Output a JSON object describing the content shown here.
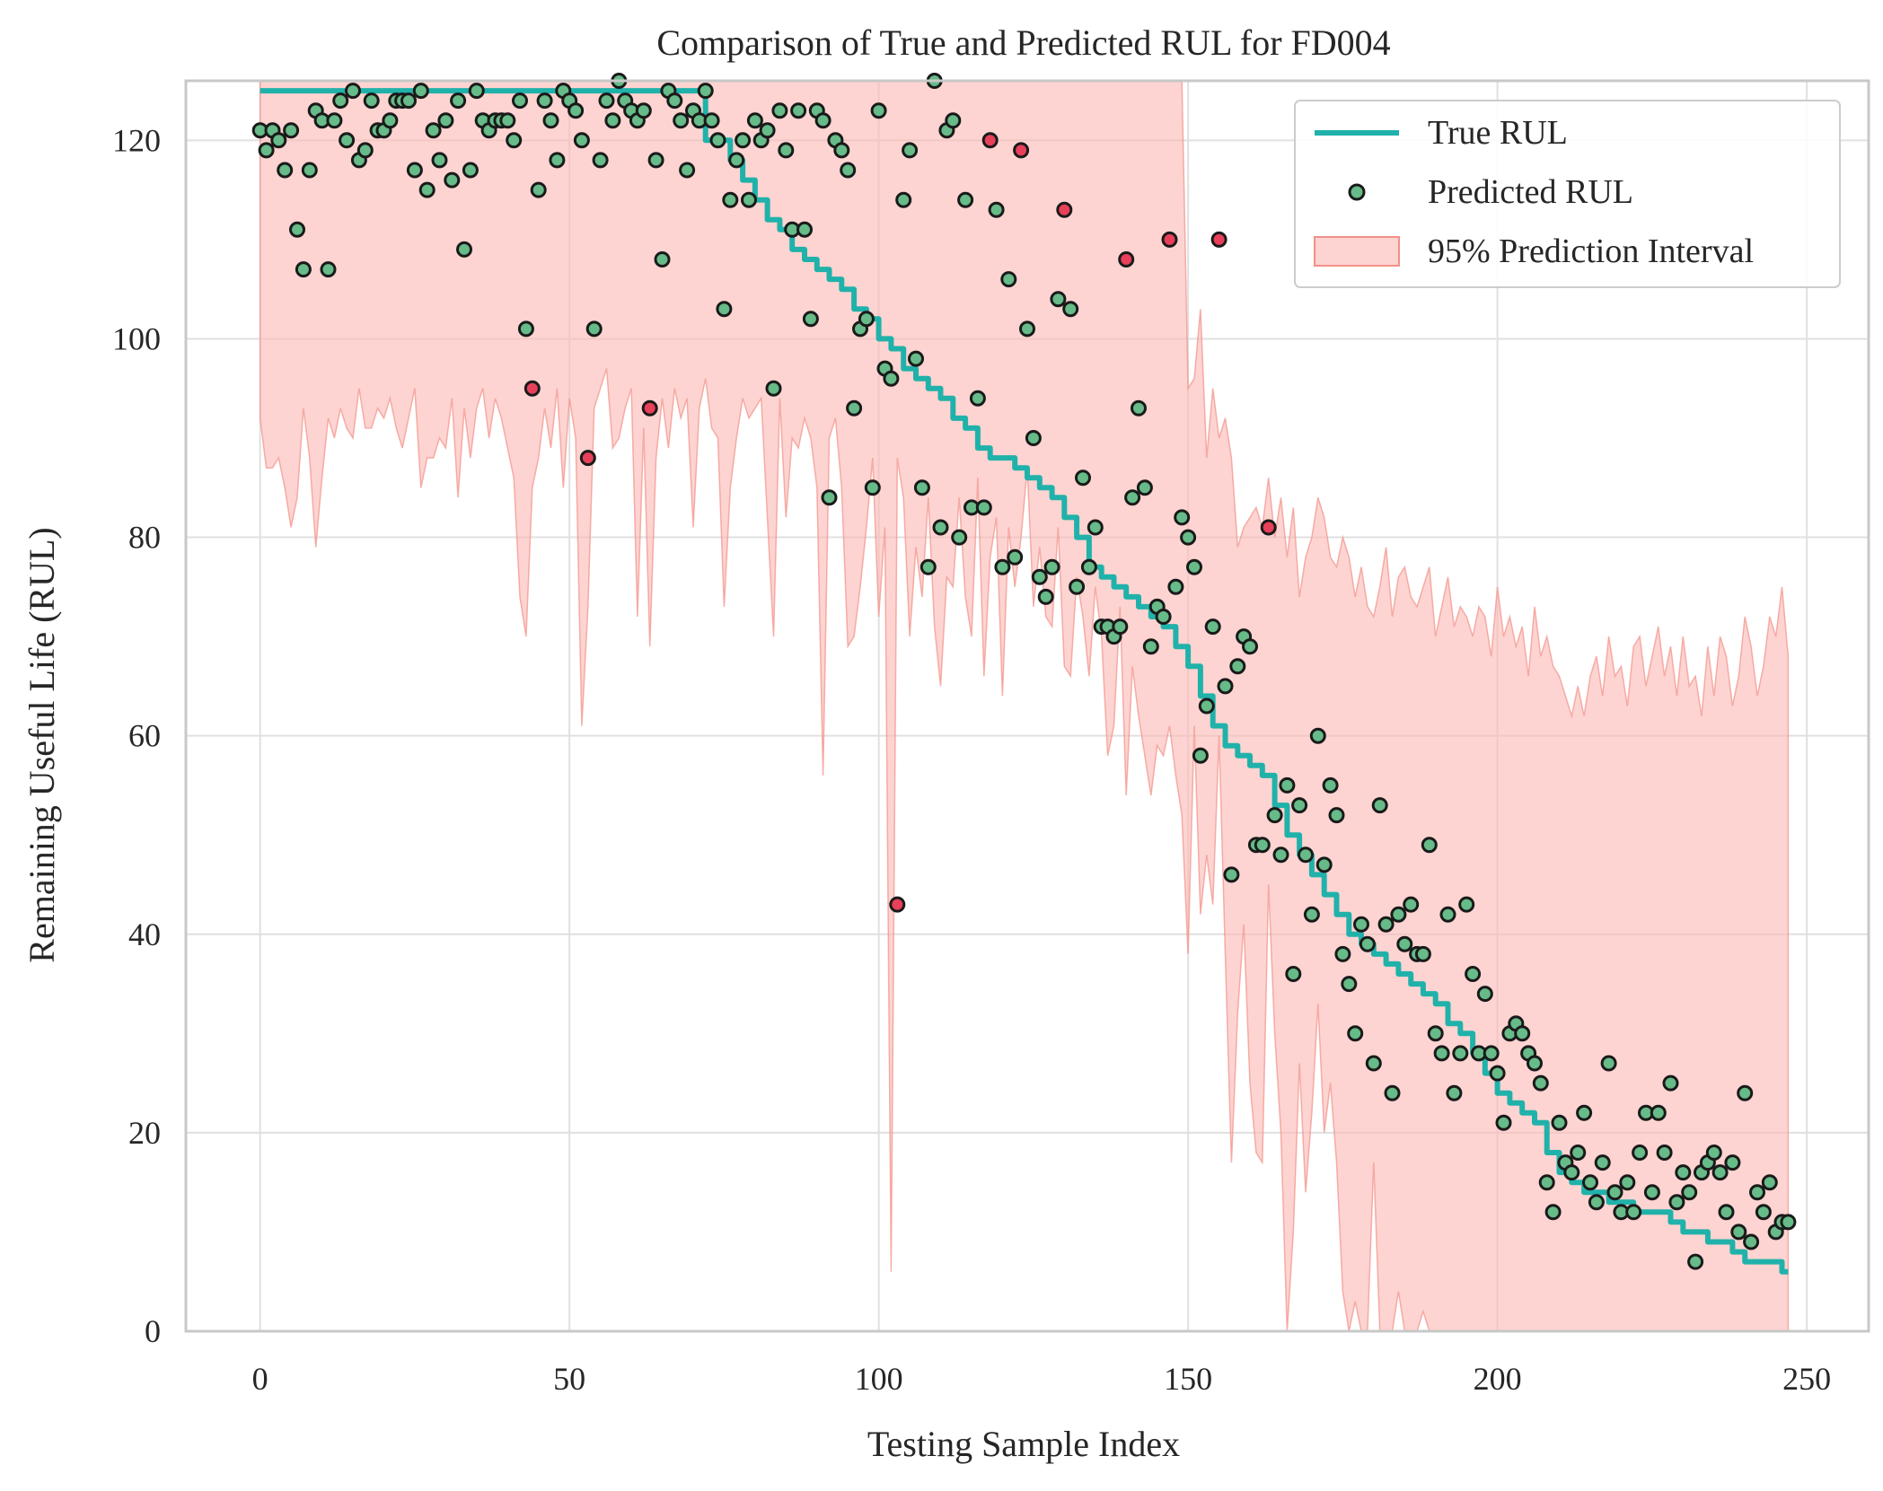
{
  "chart_data": {
    "type": "line",
    "title": "Comparison of True and Predicted RUL for FD004",
    "xlabel": "Testing Sample Index",
    "ylabel": "Remaining Useful Life (RUL)",
    "xlim": [
      -12,
      260
    ],
    "ylim": [
      0,
      126
    ],
    "x_ticks": [
      0,
      50,
      100,
      150,
      200,
      250
    ],
    "y_ticks": [
      0,
      20,
      40,
      60,
      80,
      100,
      120
    ],
    "grid": true,
    "legend_position": "top-right",
    "colors": {
      "true_line": "#20b2aa",
      "predicted_in": "#66bb88",
      "predicted_out": "#e8405a",
      "interval_fill": "#fcb8b2",
      "interval_edge": "#f29088",
      "marker_edge": "#1a1a1a",
      "grid": "#e0e0e0",
      "spine": "#c8c8c8"
    },
    "legend": [
      {
        "label": "True RUL",
        "kind": "line"
      },
      {
        "label": "Predicted RUL",
        "kind": "marker"
      },
      {
        "label": "95% Prediction Interval",
        "kind": "patch"
      }
    ],
    "true_rul": {
      "name": "True RUL",
      "x": [
        0,
        70,
        72,
        74,
        76,
        78,
        80,
        82,
        84,
        86,
        88,
        90,
        92,
        94,
        96,
        98,
        100,
        102,
        104,
        106,
        108,
        110,
        112,
        114,
        116,
        118,
        120,
        122,
        124,
        126,
        128,
        130,
        132,
        134,
        136,
        138,
        140,
        142,
        144,
        146,
        148,
        150,
        152,
        154,
        156,
        158,
        160,
        162,
        164,
        166,
        168,
        170,
        172,
        174,
        176,
        178,
        180,
        182,
        184,
        186,
        188,
        190,
        192,
        194,
        196,
        198,
        200,
        202,
        204,
        206,
        208,
        210,
        212,
        214,
        216,
        218,
        220,
        222,
        224,
        226,
        228,
        230,
        232,
        234,
        236,
        238,
        240,
        242,
        244,
        246,
        247
      ],
      "y": [
        125,
        125,
        120,
        120,
        118,
        116,
        114,
        112,
        111,
        109,
        108,
        107,
        106,
        105,
        103,
        102,
        100,
        99,
        97,
        96,
        95,
        94,
        92,
        91,
        89,
        88,
        88,
        87,
        86,
        85,
        84,
        82,
        80,
        77,
        76,
        75,
        74,
        73,
        72,
        71,
        69,
        67,
        64,
        61,
        59,
        58,
        57,
        56,
        53,
        50,
        48,
        46,
        44,
        42,
        40,
        39,
        38,
        37,
        36,
        35,
        34,
        33,
        31,
        30,
        28,
        26,
        24,
        23,
        22,
        21,
        18,
        16,
        15,
        14,
        14,
        13,
        13,
        12,
        12,
        12,
        11,
        10,
        10,
        9,
        9,
        8,
        7,
        7,
        7,
        6,
        6
      ]
    },
    "predicted_rul": {
      "name": "Predicted RUL",
      "x": [
        0,
        1,
        2,
        3,
        4,
        5,
        6,
        7,
        8,
        9,
        10,
        11,
        12,
        13,
        14,
        15,
        16,
        17,
        18,
        19,
        20,
        21,
        22,
        23,
        24,
        25,
        26,
        27,
        28,
        29,
        30,
        31,
        32,
        33,
        34,
        35,
        36,
        37,
        38,
        39,
        40,
        41,
        42,
        43,
        44,
        45,
        46,
        47,
        48,
        49,
        50,
        51,
        52,
        53,
        54,
        55,
        56,
        57,
        58,
        59,
        60,
        61,
        62,
        63,
        64,
        65,
        66,
        67,
        68,
        69,
        70,
        71,
        72,
        73,
        74,
        75,
        76,
        77,
        78,
        79,
        80,
        81,
        82,
        83,
        84,
        85,
        86,
        87,
        88,
        89,
        90,
        91,
        92,
        93,
        94,
        95,
        96,
        97,
        98,
        99,
        100,
        101,
        102,
        103,
        104,
        105,
        106,
        107,
        108,
        109,
        110,
        111,
        112,
        113,
        114,
        115,
        116,
        117,
        118,
        119,
        120,
        121,
        122,
        123,
        124,
        125,
        126,
        127,
        128,
        129,
        130,
        131,
        132,
        133,
        134,
        135,
        136,
        137,
        138,
        139,
        140,
        141,
        142,
        143,
        144,
        145,
        146,
        147,
        148,
        149,
        150,
        151,
        152,
        153,
        154,
        155,
        156,
        157,
        158,
        159,
        160,
        161,
        162,
        163,
        164,
        165,
        166,
        167,
        168,
        169,
        170,
        171,
        172,
        173,
        174,
        175,
        176,
        177,
        178,
        179,
        180,
        181,
        182,
        183,
        184,
        185,
        186,
        187,
        188,
        189,
        190,
        191,
        192,
        193,
        194,
        195,
        196,
        197,
        198,
        199,
        200,
        201,
        202,
        203,
        204,
        205,
        206,
        207,
        208,
        209,
        210,
        211,
        212,
        213,
        214,
        215,
        216,
        217,
        218,
        219,
        220,
        221,
        222,
        223,
        224,
        225,
        226,
        227,
        228,
        229,
        230,
        231,
        232,
        233,
        234,
        235,
        236,
        237,
        238,
        239,
        240,
        241,
        242,
        243,
        244,
        245,
        246,
        247
      ],
      "y": [
        121,
        119,
        121,
        120,
        117,
        121,
        111,
        107,
        117,
        123,
        122,
        107,
        122,
        124,
        120,
        125,
        118,
        119,
        124,
        121,
        121,
        122,
        124,
        124,
        124,
        117,
        125,
        115,
        121,
        118,
        122,
        116,
        124,
        109,
        117,
        125,
        122,
        121,
        122,
        122,
        122,
        120,
        124,
        101,
        95,
        115,
        124,
        122,
        118,
        125,
        124,
        123,
        120,
        88,
        101,
        118,
        124,
        122,
        126,
        124,
        123,
        122,
        123,
        93,
        118,
        108,
        125,
        124,
        122,
        117,
        123,
        122,
        125,
        122,
        120,
        103,
        114,
        118,
        120,
        114,
        122,
        120,
        121,
        95,
        123,
        119,
        111,
        123,
        111,
        102,
        123,
        122,
        84,
        120,
        119,
        117,
        93,
        101,
        102,
        85,
        123,
        97,
        96,
        43,
        114,
        119,
        98,
        85,
        77,
        126,
        81,
        121,
        122,
        80,
        114,
        83,
        94,
        83,
        120,
        113,
        77,
        106,
        78,
        119,
        101,
        90,
        76,
        74,
        77,
        104,
        113,
        103,
        75,
        86,
        77,
        81,
        71,
        71,
        70,
        71,
        108,
        84,
        93,
        85,
        69,
        73,
        72,
        110,
        75,
        82,
        80,
        77,
        58,
        63,
        71,
        110,
        65,
        46,
        67,
        70,
        69,
        49,
        49,
        81,
        52,
        48,
        55,
        36,
        53,
        48,
        42,
        60,
        47,
        55,
        52,
        38,
        35,
        30,
        41,
        39,
        27,
        53,
        41,
        24,
        42,
        39,
        43,
        38,
        38,
        49,
        30,
        28,
        42,
        24,
        28,
        43,
        36,
        28,
        34,
        28,
        26,
        21,
        30,
        31,
        30,
        28,
        27,
        25,
        15,
        12,
        21,
        17,
        16,
        18,
        22,
        15,
        13,
        17,
        27,
        14,
        12,
        15,
        12,
        18,
        22,
        14,
        22,
        18,
        25,
        13,
        16,
        14,
        7,
        16,
        17,
        18,
        16,
        12,
        17,
        10,
        24,
        9,
        14,
        12,
        15,
        10,
        11,
        11
      ]
    },
    "outside_interval_indices": [
      44,
      53,
      63,
      103,
      118,
      123,
      130,
      140,
      147,
      155,
      163
    ],
    "prediction_interval": {
      "name": "95% Prediction Interval",
      "x": [
        0,
        1,
        2,
        3,
        4,
        5,
        6,
        7,
        8,
        9,
        10,
        11,
        12,
        13,
        14,
        15,
        16,
        17,
        18,
        19,
        20,
        21,
        22,
        23,
        24,
        25,
        26,
        27,
        28,
        29,
        30,
        31,
        32,
        33,
        34,
        35,
        36,
        37,
        38,
        39,
        40,
        41,
        42,
        43,
        44,
        45,
        46,
        47,
        48,
        49,
        50,
        51,
        52,
        53,
        54,
        55,
        56,
        57,
        58,
        59,
        60,
        61,
        62,
        63,
        64,
        65,
        66,
        67,
        68,
        69,
        70,
        71,
        72,
        73,
        74,
        75,
        76,
        77,
        78,
        79,
        80,
        81,
        82,
        83,
        84,
        85,
        86,
        87,
        88,
        89,
        90,
        91,
        92,
        93,
        94,
        95,
        96,
        97,
        98,
        99,
        100,
        101,
        102,
        103,
        104,
        105,
        106,
        107,
        108,
        109,
        110,
        111,
        112,
        113,
        114,
        115,
        116,
        117,
        118,
        119,
        120,
        121,
        122,
        123,
        124,
        125,
        126,
        127,
        128,
        129,
        130,
        131,
        132,
        133,
        134,
        135,
        136,
        137,
        138,
        139,
        140,
        141,
        142,
        143,
        144,
        145,
        146,
        147,
        148,
        149,
        150,
        151,
        152,
        153,
        154,
        155,
        156,
        157,
        158,
        159,
        160,
        161,
        162,
        163,
        164,
        165,
        166,
        167,
        168,
        169,
        170,
        171,
        172,
        173,
        174,
        175,
        176,
        177,
        178,
        179,
        180,
        181,
        182,
        183,
        184,
        185,
        186,
        187,
        188,
        189,
        190,
        191,
        192,
        193,
        194,
        195,
        196,
        197,
        198,
        199,
        200,
        201,
        202,
        203,
        204,
        205,
        206,
        207,
        208,
        209,
        210,
        211,
        212,
        213,
        214,
        215,
        216,
        217,
        218,
        219,
        220,
        221,
        222,
        223,
        224,
        225,
        226,
        227,
        228,
        229,
        230,
        231,
        232,
        233,
        234,
        235,
        236,
        237,
        238,
        239,
        240,
        241,
        242,
        243,
        244,
        245,
        246,
        247
      ],
      "lower": [
        92,
        87,
        87,
        88,
        85,
        81,
        84,
        93,
        88,
        79,
        86,
        92,
        90,
        93,
        91,
        90,
        95,
        91,
        91,
        93,
        92,
        94,
        91,
        89,
        92,
        95,
        85,
        88,
        88,
        90,
        89,
        94,
        84,
        93,
        88,
        93,
        95,
        90,
        94,
        92,
        89,
        86,
        74,
        70,
        85,
        88,
        93,
        89,
        95,
        85,
        94,
        90,
        61,
        73,
        93,
        95,
        97,
        89,
        90,
        93,
        95,
        72,
        91,
        69,
        88,
        94,
        89,
        95,
        92,
        94,
        81,
        93,
        96,
        91,
        90,
        73,
        85,
        90,
        94,
        92,
        93,
        94,
        82,
        70,
        94,
        82,
        90,
        89,
        92,
        90,
        85,
        56,
        90,
        92,
        85,
        69,
        70,
        75,
        81,
        88,
        72,
        81,
        6,
        88,
        84,
        70,
        79,
        74,
        84,
        71,
        65,
        76,
        75,
        84,
        74,
        70,
        86,
        66,
        78,
        82,
        64,
        81,
        75,
        80,
        87,
        73,
        79,
        72,
        71,
        81,
        67,
        66,
        76,
        72,
        66,
        75,
        70,
        58,
        61,
        73,
        54,
        67,
        62,
        58,
        54,
        59,
        58,
        61,
        56,
        52,
        38,
        61,
        42,
        48,
        43,
        60,
        38,
        17,
        32,
        41,
        25,
        18,
        17,
        45,
        30,
        20,
        0,
        10,
        27,
        14,
        22,
        33,
        20,
        25,
        17,
        4,
        0,
        3,
        0,
        0,
        17,
        0,
        0,
        0,
        4,
        0,
        0,
        0,
        2,
        0,
        0,
        0,
        0,
        0,
        0,
        0,
        0,
        0,
        0,
        0,
        0,
        0,
        0,
        0,
        0,
        0,
        0,
        0,
        0,
        0,
        0,
        0,
        0,
        0,
        0,
        0,
        0,
        0,
        0,
        0,
        0,
        0,
        0,
        0,
        0,
        0,
        0,
        0,
        0,
        0,
        0,
        0,
        0,
        0,
        0,
        0,
        0,
        0,
        0,
        0,
        0,
        0,
        0,
        0,
        0,
        0,
        0,
        0
      ],
      "upper": [
        126,
        126,
        126,
        126,
        126,
        126,
        126,
        126,
        126,
        126,
        126,
        126,
        126,
        126,
        126,
        126,
        126,
        126,
        126,
        126,
        126,
        126,
        126,
        126,
        126,
        126,
        126,
        126,
        126,
        126,
        126,
        126,
        126,
        126,
        126,
        126,
        126,
        126,
        126,
        126,
        126,
        126,
        126,
        126,
        126,
        126,
        126,
        126,
        126,
        126,
        126,
        126,
        126,
        126,
        126,
        126,
        126,
        126,
        126,
        126,
        126,
        126,
        126,
        126,
        126,
        126,
        126,
        126,
        126,
        126,
        126,
        126,
        126,
        126,
        126,
        126,
        126,
        126,
        126,
        126,
        126,
        126,
        126,
        126,
        126,
        126,
        126,
        126,
        126,
        126,
        126,
        126,
        126,
        126,
        126,
        126,
        126,
        126,
        126,
        126,
        126,
        126,
        126,
        126,
        126,
        126,
        126,
        126,
        126,
        126,
        126,
        126,
        126,
        126,
        126,
        126,
        126,
        126,
        126,
        126,
        126,
        126,
        126,
        126,
        126,
        126,
        126,
        126,
        126,
        126,
        126,
        126,
        126,
        126,
        126,
        126,
        126,
        126,
        126,
        126,
        126,
        126,
        126,
        126,
        126,
        126,
        126,
        126,
        126,
        126,
        95,
        96,
        103,
        88,
        95,
        90,
        92,
        88,
        79,
        81,
        82,
        83,
        81,
        86,
        80,
        84,
        78,
        83,
        74,
        78,
        80,
        84,
        82,
        78,
        77,
        80,
        78,
        74,
        77,
        73,
        72,
        75,
        79,
        72,
        76,
        77,
        74,
        73,
        75,
        77,
        70,
        73,
        76,
        71,
        73,
        72,
        70,
        73,
        72,
        68,
        75,
        70,
        72,
        69,
        71,
        66,
        73,
        68,
        70,
        67,
        66,
        64,
        62,
        65,
        62,
        66,
        68,
        64,
        70,
        66,
        67,
        63,
        69,
        70,
        65,
        68,
        71,
        66,
        69,
        64,
        70,
        65,
        66,
        62,
        69,
        64,
        70,
        68,
        63,
        66,
        72,
        69,
        64,
        67,
        72,
        70,
        75,
        68
      ]
    }
  }
}
